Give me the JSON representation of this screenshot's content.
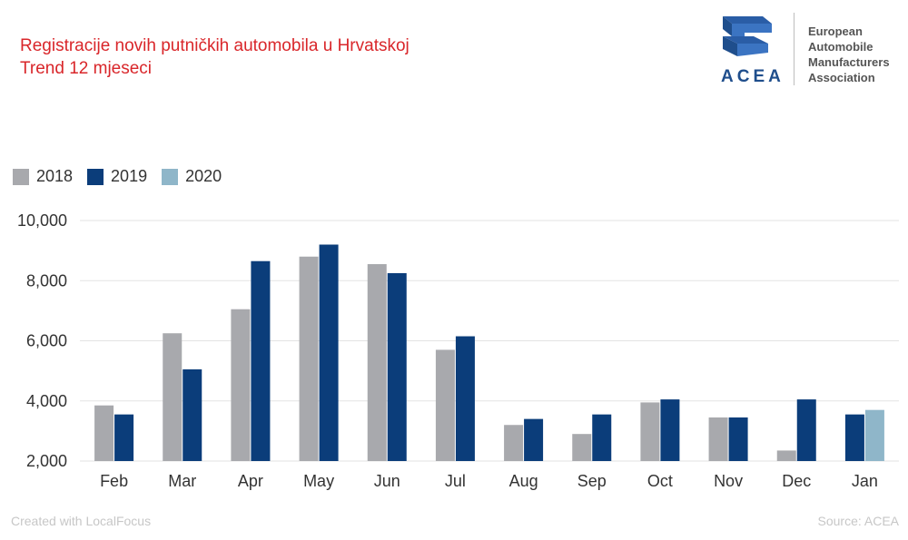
{
  "header": {
    "title_line1": "Registracije novih putničkih automobila u Hrvatskoj",
    "title_line2": "Trend 12 mjeseci"
  },
  "logo": {
    "icon": "acea-logo-icon",
    "wordmark": "ACEA",
    "lines": [
      "European",
      "Automobile",
      "Manufacturers",
      "Association"
    ]
  },
  "colors": {
    "2018": "#a8a9ad",
    "2019": "#0b3d7a",
    "2020": "#8fb6c9",
    "title": "#d9262a"
  },
  "footer": {
    "credit": "Created with LocalFocus",
    "source": "Source:  ACEA"
  },
  "chart_data": {
    "type": "bar",
    "categories": [
      "Feb",
      "Mar",
      "Apr",
      "May",
      "Jun",
      "Jul",
      "Aug",
      "Sep",
      "Oct",
      "Nov",
      "Dec",
      "Jan"
    ],
    "series": [
      {
        "name": "2018",
        "values": [
          3850,
          6250,
          7050,
          8800,
          8550,
          5700,
          3200,
          2900,
          3950,
          3450,
          2350,
          null
        ]
      },
      {
        "name": "2019",
        "values": [
          3550,
          5050,
          8650,
          9200,
          8250,
          6150,
          3400,
          3550,
          4050,
          3450,
          4050,
          3550
        ]
      },
      {
        "name": "2020",
        "values": [
          null,
          null,
          null,
          null,
          null,
          null,
          null,
          null,
          null,
          null,
          null,
          3700
        ]
      }
    ],
    "yticks": [
      "2,000",
      "4,000",
      "6,000",
      "8,000",
      "10,000"
    ],
    "ylim": [
      2000,
      10000
    ],
    "grid": true,
    "legend": "top-left"
  }
}
